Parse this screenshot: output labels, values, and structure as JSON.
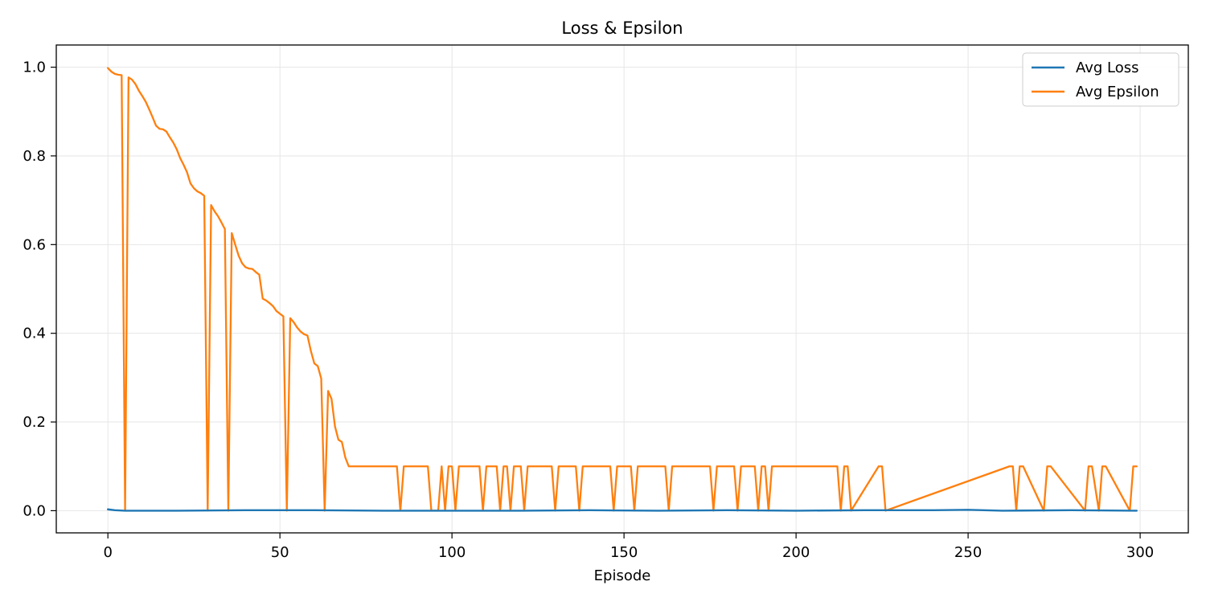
{
  "chart_data": {
    "type": "line",
    "title": "Loss & Epsilon",
    "xlabel": "Episode",
    "ylabel": "",
    "xlim": [
      -15,
      314
    ],
    "ylim": [
      -0.05,
      1.05
    ],
    "xticks": [
      0,
      50,
      100,
      150,
      200,
      250,
      300
    ],
    "yticks": [
      0.0,
      0.2,
      0.4,
      0.6,
      0.8,
      1.0
    ],
    "xtick_labels": [
      "0",
      "50",
      "100",
      "150",
      "200",
      "250",
      "300"
    ],
    "ytick_labels": [
      "0.0",
      "0.2",
      "0.4",
      "0.6",
      "0.8",
      "1.0"
    ],
    "grid": true,
    "legend_position": "top-right",
    "legend": [
      "Avg Loss",
      "Avg Epsilon"
    ],
    "colors": {
      "Avg Loss": "#1f77b4",
      "Avg Epsilon": "#ff7f0e"
    },
    "series": [
      {
        "name": "Avg Loss",
        "x": [
          0,
          2,
          5,
          20,
          40,
          60,
          80,
          100,
          120,
          140,
          160,
          180,
          200,
          220,
          240,
          250,
          260,
          280,
          299
        ],
        "y": [
          0.003,
          0.001,
          0.0,
          0.0,
          0.001,
          0.001,
          0.0,
          0.0,
          0.0,
          0.001,
          0.0,
          0.001,
          0.0,
          0.001,
          0.001,
          0.002,
          0.0,
          0.001,
          0.0
        ]
      },
      {
        "name": "Avg Epsilon",
        "x": [
          0,
          1,
          2,
          3,
          4,
          5,
          6,
          7,
          8,
          9,
          10,
          11,
          12,
          13,
          14,
          15,
          16,
          17,
          18,
          19,
          20,
          21,
          22,
          23,
          24,
          25,
          26,
          27,
          28,
          29,
          30,
          31,
          32,
          33,
          34,
          35,
          36,
          37,
          38,
          39,
          40,
          41,
          42,
          43,
          44,
          45,
          46,
          47,
          48,
          49,
          50,
          51,
          52,
          53,
          54,
          55,
          56,
          57,
          58,
          59,
          60,
          61,
          62,
          63,
          64,
          65,
          66,
          67,
          68,
          69,
          70,
          71,
          72,
          73,
          74,
          75,
          84,
          85,
          86,
          93,
          94,
          96,
          97,
          98,
          99,
          100,
          101,
          102,
          108,
          109,
          110,
          113,
          114,
          115,
          116,
          117,
          118,
          120,
          121,
          122,
          129,
          130,
          131,
          136,
          137,
          138,
          146,
          147,
          148,
          152,
          153,
          154,
          162,
          163,
          164,
          175,
          176,
          177,
          182,
          183,
          184,
          188,
          189,
          190,
          191,
          192,
          193,
          212,
          213,
          214,
          215,
          216,
          224,
          225,
          226,
          262,
          263,
          264,
          265,
          266,
          272,
          273,
          274,
          284,
          285,
          286,
          288,
          289,
          290,
          297,
          298,
          299
        ],
        "y": [
          0.998,
          0.99,
          0.985,
          0.983,
          0.982,
          0.0,
          0.977,
          0.972,
          0.962,
          0.947,
          0.935,
          0.922,
          0.905,
          0.887,
          0.868,
          0.861,
          0.86,
          0.855,
          0.842,
          0.83,
          0.815,
          0.795,
          0.78,
          0.763,
          0.738,
          0.727,
          0.72,
          0.716,
          0.71,
          0.0,
          0.689,
          0.675,
          0.664,
          0.65,
          0.635,
          0.0,
          0.626,
          0.6,
          0.575,
          0.558,
          0.549,
          0.546,
          0.545,
          0.538,
          0.532,
          0.478,
          0.474,
          0.468,
          0.461,
          0.45,
          0.444,
          0.438,
          0.0,
          0.434,
          0.425,
          0.413,
          0.404,
          0.398,
          0.395,
          0.36,
          0.332,
          0.326,
          0.298,
          0.0,
          0.27,
          0.252,
          0.19,
          0.16,
          0.155,
          0.12,
          0.1,
          0.1,
          0.1,
          0.1,
          0.1,
          0.1,
          0.1,
          0.0,
          0.1,
          0.1,
          0.0,
          0.0,
          0.1,
          0.0,
          0.1,
          0.1,
          0.0,
          0.1,
          0.1,
          0.0,
          0.1,
          0.1,
          0.0,
          0.1,
          0.1,
          0.0,
          0.1,
          0.1,
          0.0,
          0.1,
          0.1,
          0.0,
          0.1,
          0.1,
          0.0,
          0.1,
          0.1,
          0.0,
          0.1,
          0.1,
          0.0,
          0.1,
          0.1,
          0.0,
          0.1,
          0.1,
          0.0,
          0.1,
          0.1,
          0.0,
          0.1,
          0.1,
          0.0,
          0.1,
          0.1,
          0.0,
          0.1,
          0.1,
          0.0,
          0.1,
          0.1,
          0.0,
          0.1,
          0.1,
          0.0,
          0.1,
          0.1,
          0.0,
          0.1,
          0.1,
          0.0,
          0.1,
          0.1,
          0.0,
          0.1,
          0.1,
          0.0,
          0.1,
          0.1,
          0.0,
          0.1,
          0.1
        ]
      }
    ]
  }
}
